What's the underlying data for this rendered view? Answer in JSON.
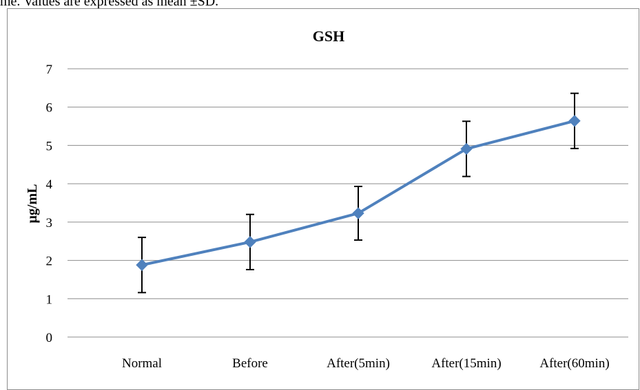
{
  "caption_fragment": "me. Values are expressed as mean ±SD.",
  "chart_data": {
    "type": "line",
    "title": "GSH",
    "ylabel": "μg/mL",
    "xlabel": "",
    "categories": [
      "Normal",
      "Before",
      "After(5min)",
      "After(15min)",
      "After(60min)"
    ],
    "series": [
      {
        "values": [
          1.88,
          2.48,
          3.23,
          4.91,
          5.64
        ],
        "error": [
          0.72,
          0.72,
          0.7,
          0.72,
          0.72
        ]
      }
    ],
    "ylim": [
      0,
      7
    ],
    "yticks": [
      0,
      1,
      2,
      3,
      4,
      5,
      6,
      7
    ],
    "grid": true,
    "legend": "none",
    "colors": {
      "line": "#4f81bd",
      "marker": "#4f81bd",
      "error_bar": "#000000",
      "grid": "#8c8c8c"
    }
  }
}
